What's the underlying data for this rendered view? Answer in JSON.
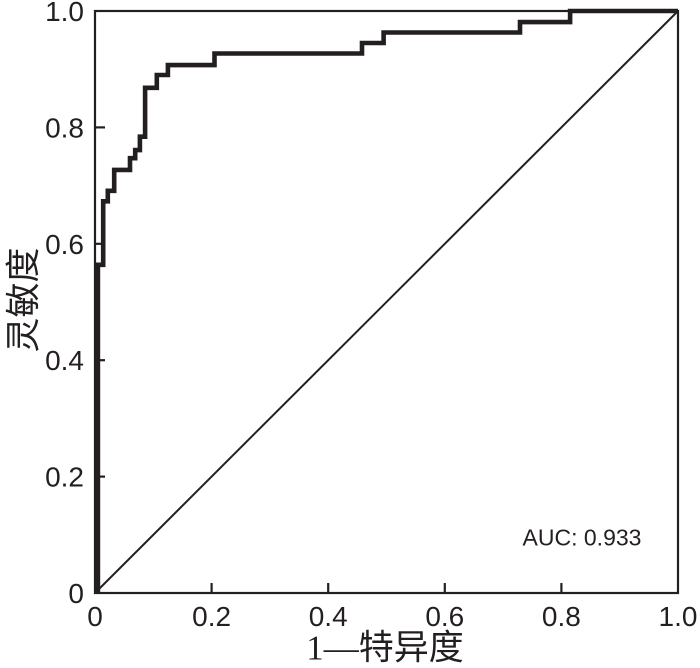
{
  "figure": {
    "background": "#ffffff",
    "axis_color": "#231f20",
    "text_color": "#231f20"
  },
  "chart_data": {
    "type": "line",
    "subtype": "roc-curve",
    "title": "",
    "xlabel": "1—特异度",
    "ylabel": "灵敏度",
    "xlim": [
      0,
      1
    ],
    "ylim": [
      0,
      1
    ],
    "x_ticks": [
      0,
      0.2,
      0.4,
      0.6,
      0.8,
      1
    ],
    "x_tick_labels": [
      "0",
      "0.2",
      "0.4",
      "0.6",
      "0.8",
      "1.0"
    ],
    "y_ticks": [
      0,
      0.2,
      0.4,
      0.6,
      0.8,
      1
    ],
    "y_tick_labels": [
      "0",
      "0.2",
      "0.4",
      "0.6",
      "0.8",
      "1.0"
    ],
    "grid": false,
    "legend": false,
    "auc": 0.933,
    "annotation": {
      "text": "AUC: 0.933",
      "x": 0.835,
      "y": 0.096
    },
    "series": [
      {
        "name": "ROC curve",
        "style": "step",
        "color": "#231f20",
        "stroke_width": 4.6,
        "points": [
          [
            0.005,
            0.0
          ],
          [
            0.005,
            0.564
          ],
          [
            0.014,
            0.564
          ],
          [
            0.014,
            0.673
          ],
          [
            0.022,
            0.673
          ],
          [
            0.022,
            0.691
          ],
          [
            0.033,
            0.691
          ],
          [
            0.033,
            0.727
          ],
          [
            0.06,
            0.727
          ],
          [
            0.06,
            0.747
          ],
          [
            0.069,
            0.747
          ],
          [
            0.069,
            0.761
          ],
          [
            0.077,
            0.761
          ],
          [
            0.077,
            0.784
          ],
          [
            0.086,
            0.784
          ],
          [
            0.086,
            0.868
          ],
          [
            0.106,
            0.868
          ],
          [
            0.106,
            0.89
          ],
          [
            0.125,
            0.89
          ],
          [
            0.125,
            0.907
          ],
          [
            0.205,
            0.907
          ],
          [
            0.205,
            0.927
          ],
          [
            0.458,
            0.927
          ],
          [
            0.458,
            0.945
          ],
          [
            0.495,
            0.945
          ],
          [
            0.495,
            0.963
          ],
          [
            0.729,
            0.963
          ],
          [
            0.729,
            0.981
          ],
          [
            0.815,
            0.981
          ],
          [
            0.815,
            1.0
          ],
          [
            1.0,
            1.0
          ]
        ]
      },
      {
        "name": "reference diagonal",
        "style": "straight",
        "color": "#231f20",
        "stroke_width": 2,
        "points": [
          [
            0,
            0
          ],
          [
            1,
            1
          ]
        ]
      }
    ]
  }
}
